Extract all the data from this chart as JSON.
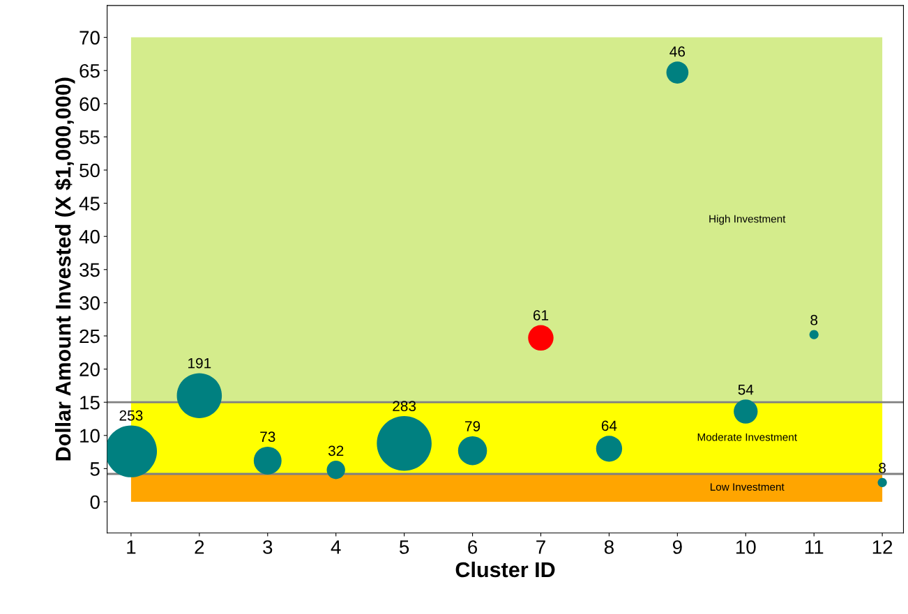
{
  "chart_data": {
    "type": "bubble",
    "xlabel": "Cluster ID",
    "ylabel": "Dollar Amount Invested (X $1,000,000)",
    "x": [
      1,
      2,
      3,
      4,
      5,
      6,
      7,
      8,
      9,
      10,
      11,
      12
    ],
    "values": [
      7.6,
      16.0,
      6.2,
      4.8,
      8.8,
      7.7,
      24.7,
      8.0,
      64.7,
      13.6,
      25.2,
      2.9
    ],
    "sizes": [
      253,
      191,
      73,
      32,
      283,
      79,
      61,
      64,
      46,
      54,
      8,
      8
    ],
    "value_labels": [
      "253",
      "191",
      "73",
      "32",
      "283",
      "79",
      "61",
      "64",
      "46",
      "54",
      "8",
      "8"
    ],
    "colors": [
      "#008080",
      "#008080",
      "#008080",
      "#008080",
      "#008080",
      "#008080",
      "#ff0000",
      "#008080",
      "#008080",
      "#008080",
      "#008080",
      "#008080"
    ],
    "bands": [
      {
        "axis": "y",
        "from": 15,
        "to": 70,
        "label": "High Investment",
        "color": "#d4ec8c"
      },
      {
        "axis": "y",
        "from": 4.2,
        "to": 15,
        "label": "Moderate Investment",
        "color": "#ffff00"
      },
      {
        "axis": "y",
        "from": 0,
        "to": 4.2,
        "label": "Low Investment",
        "color": "#ffa500"
      }
    ],
    "ref_lines": [
      {
        "axis": "y",
        "value": 15,
        "color": "#808080"
      },
      {
        "axis": "y",
        "value": 4.2,
        "color": "#808080"
      }
    ],
    "xlim": [
      0.65,
      12.31
    ],
    "ylim": [
      -4.7,
      74.8
    ],
    "xticks": [
      1,
      2,
      3,
      4,
      5,
      6,
      7,
      8,
      9,
      10,
      11,
      12
    ],
    "yticks": [
      0,
      5,
      10,
      15,
      20,
      25,
      30,
      35,
      40,
      45,
      50,
      55,
      60,
      65,
      70
    ],
    "grid": false,
    "legend": false
  }
}
